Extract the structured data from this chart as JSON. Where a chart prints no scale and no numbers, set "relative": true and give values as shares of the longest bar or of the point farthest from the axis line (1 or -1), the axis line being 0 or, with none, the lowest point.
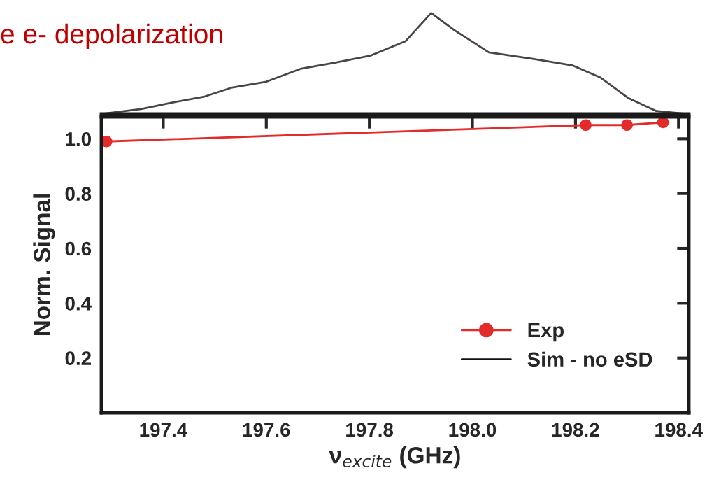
{
  "chart_data": [
    {
      "type": "line",
      "relative": true,
      "title": "e e- depolarization",
      "xlim": [
        197.28,
        198.42
      ],
      "series": [
        {
          "color": "#4a4443",
          "x": [
            197.28,
            197.357,
            197.424,
            197.478,
            197.532,
            197.6,
            197.668,
            197.735,
            197.803,
            197.87,
            197.92,
            197.965,
            198.032,
            198.113,
            198.195,
            198.249,
            198.302,
            198.357,
            198.417
          ],
          "values": [
            0,
            0.05,
            0.12,
            0.17,
            0.26,
            0.32,
            0.45,
            0.51,
            0.58,
            0.72,
            1.0,
            0.83,
            0.61,
            0.55,
            0.48,
            0.36,
            0.16,
            0.03,
            0
          ]
        }
      ]
    },
    {
      "type": "line",
      "xlabel": "ν$_{excite}$ (GHz)",
      "ylabel": "Norm. Signal",
      "xlim": [
        197.28,
        198.42
      ],
      "ylim": [
        0,
        1.08
      ],
      "xticks": [
        197.4,
        197.6,
        197.8,
        {
          "value": 198.0,
          "label": "198.0"
        },
        198.2,
        198.4
      ],
      "yticks": [
        0.2,
        0.4,
        0.6,
        0.8,
        {
          "value": 1.0,
          "label": "1.0"
        }
      ],
      "legend": "bottom right",
      "grid": false,
      "series": [
        {
          "name": "Exp",
          "color": "#e32b2b",
          "marker": "circle",
          "x": [
            197.29,
            198.22,
            198.3,
            198.37
          ],
          "values": [
            0.99,
            1.05,
            1.05,
            1.06
          ]
        },
        {
          "name": "Sim - no eSD",
          "color": "#111111",
          "marker": "none"
        }
      ]
    }
  ]
}
